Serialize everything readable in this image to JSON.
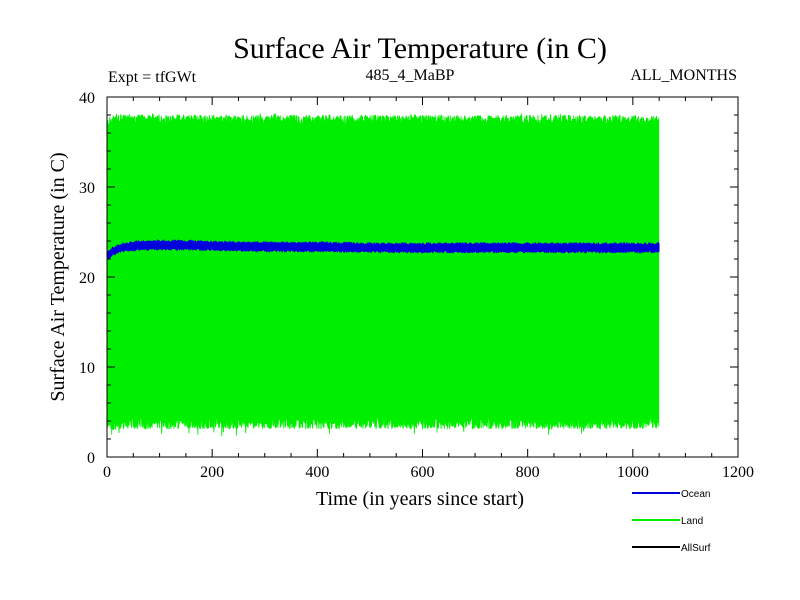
{
  "chart_data": {
    "type": "line",
    "title": "Surface Air Temperature (in C)",
    "subtitle_left": "Expt = tfGWt",
    "subtitle_center": "485_4_MaBP",
    "subtitle_right": "ALL_MONTHS",
    "xlabel": "Time (in years since start)",
    "ylabel": "Surface Air Temperature (in C)",
    "xlim": [
      0,
      1200
    ],
    "ylim": [
      0,
      40
    ],
    "xticks": [
      0,
      200,
      400,
      600,
      800,
      1000,
      1200
    ],
    "yticks": [
      0,
      10,
      20,
      30,
      40
    ],
    "x_end": 1050,
    "series": [
      {
        "name": "Land",
        "color": "#00ee00",
        "style": "oscillating-band",
        "upper": {
          "x": [
            0,
            10,
            50,
            100,
            200,
            400,
            600,
            800,
            1000,
            1050
          ],
          "values": [
            37.0,
            37.4,
            37.5,
            37.5,
            37.4,
            37.4,
            37.4,
            37.4,
            37.4,
            37.3
          ]
        },
        "lower": {
          "x": [
            0,
            10,
            50,
            100,
            200,
            400,
            600,
            800,
            1000,
            1050
          ],
          "values": [
            3.8,
            3.7,
            3.8,
            3.8,
            3.8,
            3.8,
            3.8,
            3.8,
            3.8,
            3.8
          ]
        },
        "max_spike": 38.2,
        "min_spike": 2.3
      },
      {
        "name": "Ocean",
        "color": "#0000dd",
        "style": "band",
        "upper": {
          "x": [
            0,
            10,
            25,
            50,
            75,
            100,
            150,
            200,
            300,
            400,
            500,
            600,
            700,
            800,
            900,
            1000,
            1050
          ],
          "values": [
            22.7,
            23.2,
            23.6,
            23.9,
            24.0,
            24.0,
            24.0,
            23.9,
            23.8,
            23.8,
            23.7,
            23.7,
            23.7,
            23.7,
            23.7,
            23.7,
            23.7
          ]
        },
        "lower": {
          "x": [
            0,
            10,
            25,
            50,
            75,
            100,
            150,
            200,
            300,
            400,
            500,
            600,
            700,
            800,
            900,
            1000,
            1050
          ],
          "values": [
            22.0,
            22.4,
            22.8,
            23.0,
            23.1,
            23.1,
            23.1,
            23.0,
            22.9,
            22.9,
            22.8,
            22.8,
            22.8,
            22.8,
            22.8,
            22.8,
            22.8
          ]
        }
      },
      {
        "name": "AllSurf",
        "color": "#000000",
        "style": "line",
        "x": [],
        "values": []
      }
    ],
    "legend": {
      "placement": "bottom-right",
      "entries": [
        "Ocean",
        "Land",
        "AllSurf"
      ]
    }
  }
}
